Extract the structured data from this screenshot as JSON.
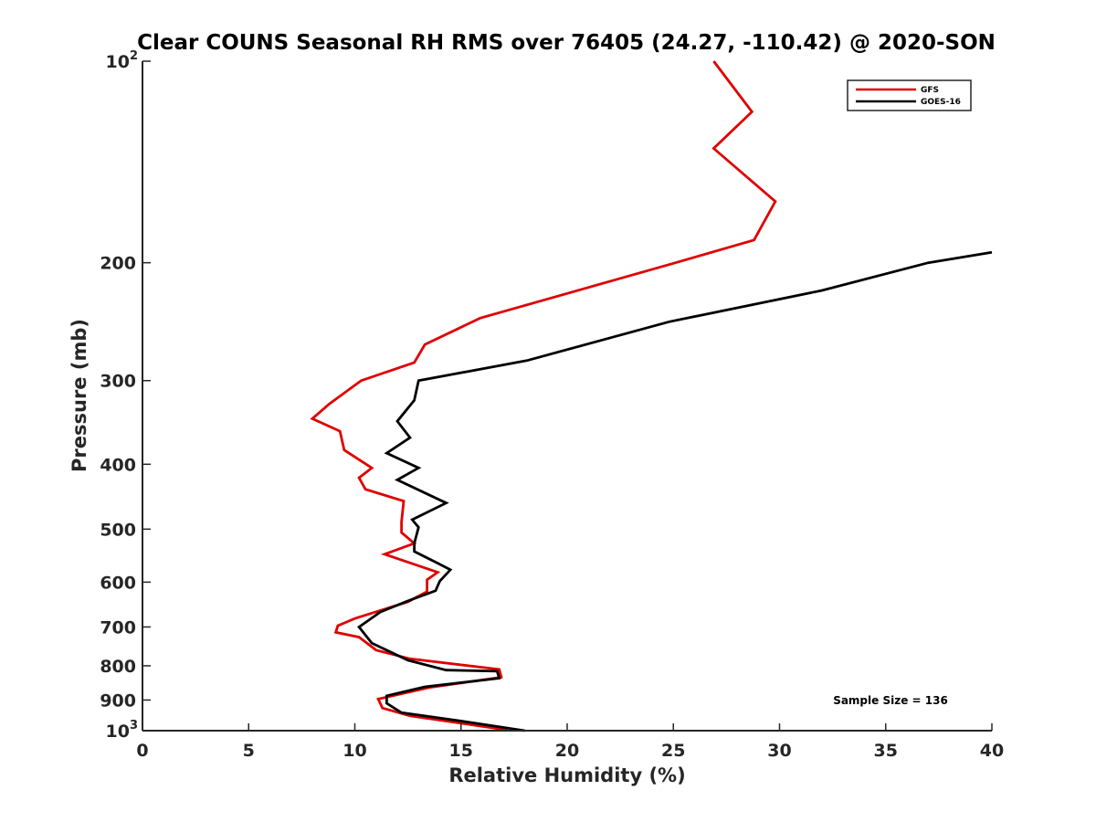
{
  "chart_data": {
    "type": "line",
    "title": "Clear COUNS Seasonal RH RMS over 76405 (24.27, -110.42) @ 2020-SON",
    "xlabel": "Relative Humidity (%)",
    "ylabel": "Pressure (mb)",
    "xlim": [
      0,
      40
    ],
    "ylim": [
      100,
      1000
    ],
    "y_scale": "log",
    "y_reversed": true,
    "grid": false,
    "x_ticks": [
      {
        "value": 0,
        "label": "0"
      },
      {
        "value": 5,
        "label": "5"
      },
      {
        "value": 10,
        "label": "10"
      },
      {
        "value": 15,
        "label": "15"
      },
      {
        "value": 20,
        "label": "20"
      },
      {
        "value": 25,
        "label": "25"
      },
      {
        "value": 30,
        "label": "30"
      },
      {
        "value": 35,
        "label": "35"
      },
      {
        "value": 40,
        "label": "40"
      }
    ],
    "y_ticks": [
      {
        "value": 100,
        "label": "10",
        "sup": "2"
      },
      {
        "value": 200,
        "label": "200"
      },
      {
        "value": 300,
        "label": "300"
      },
      {
        "value": 400,
        "label": "400"
      },
      {
        "value": 500,
        "label": "500"
      },
      {
        "value": 600,
        "label": "600"
      },
      {
        "value": 700,
        "label": "700"
      },
      {
        "value": 800,
        "label": "800"
      },
      {
        "value": 900,
        "label": "900"
      },
      {
        "value": 1000,
        "label": "10",
        "sup": "3"
      }
    ],
    "legend_position": "top-right",
    "series": [
      {
        "name": "GFS",
        "color": "#e00000",
        "points": [
          [
            26.9,
            100
          ],
          [
            28.7,
            119
          ],
          [
            26.9,
            135
          ],
          [
            29.8,
            162
          ],
          [
            28.8,
            185
          ],
          [
            25.1,
            200
          ],
          [
            15.9,
            242
          ],
          [
            13.3,
            265
          ],
          [
            12.8,
            282
          ],
          [
            10.3,
            300
          ],
          [
            8.8,
            325
          ],
          [
            8.0,
            342
          ],
          [
            9.3,
            357
          ],
          [
            9.5,
            381
          ],
          [
            10.8,
            405
          ],
          [
            10.2,
            419
          ],
          [
            10.5,
            436
          ],
          [
            12.3,
            454
          ],
          [
            12.2,
            488
          ],
          [
            12.2,
            506
          ],
          [
            12.8,
            525
          ],
          [
            11.4,
            545
          ],
          [
            13.9,
            580
          ],
          [
            13.4,
            595
          ],
          [
            13.4,
            620
          ],
          [
            12.5,
            642
          ],
          [
            10.0,
            680
          ],
          [
            9.2,
            697
          ],
          [
            9.1,
            713
          ],
          [
            10.2,
            725
          ],
          [
            11.0,
            758
          ],
          [
            12.6,
            781
          ],
          [
            16.8,
            810
          ],
          [
            16.9,
            832
          ],
          [
            13.5,
            862
          ],
          [
            11.1,
            897
          ],
          [
            11.3,
            925
          ],
          [
            12.6,
            950
          ],
          [
            17.2,
            998
          ]
        ]
      },
      {
        "name": "GOES-16",
        "color": "#000000",
        "points": [
          [
            40.0,
            193
          ],
          [
            37.0,
            200
          ],
          [
            32.0,
            220
          ],
          [
            24.8,
            245
          ],
          [
            18.1,
            280
          ],
          [
            13.0,
            300
          ],
          [
            12.8,
            321
          ],
          [
            12.0,
            345
          ],
          [
            12.6,
            365
          ],
          [
            11.5,
            385
          ],
          [
            13.0,
            405
          ],
          [
            12.0,
            422
          ],
          [
            14.3,
            457
          ],
          [
            12.7,
            484
          ],
          [
            13.0,
            497
          ],
          [
            12.8,
            525
          ],
          [
            12.8,
            540
          ],
          [
            13.9,
            562
          ],
          [
            14.5,
            575
          ],
          [
            14.0,
            598
          ],
          [
            13.8,
            618
          ],
          [
            12.5,
            640
          ],
          [
            11.2,
            665
          ],
          [
            10.2,
            700
          ],
          [
            10.8,
            740
          ],
          [
            12.5,
            785
          ],
          [
            14.3,
            812
          ],
          [
            16.7,
            815
          ],
          [
            16.8,
            835
          ],
          [
            13.3,
            860
          ],
          [
            11.5,
            887
          ],
          [
            11.5,
            910
          ],
          [
            12.2,
            940
          ],
          [
            14.8,
            965
          ],
          [
            18.0,
            1000
          ]
        ]
      }
    ],
    "annotation": "Sample Size = 136"
  }
}
